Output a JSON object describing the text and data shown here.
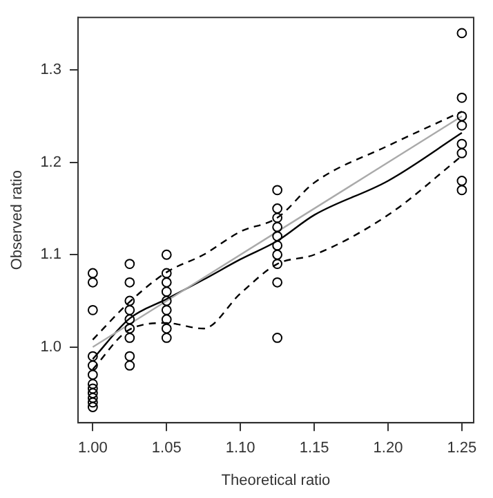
{
  "chart_data": {
    "type": "scatter",
    "xlabel": "Theoretical ratio",
    "ylabel": "Observed ratio",
    "xlim": [
      0.99,
      1.258
    ],
    "ylim": [
      0.918,
      1.357
    ],
    "xticks": [
      {
        "value": 1.0,
        "label": "1.00"
      },
      {
        "value": 1.05,
        "label": "1.05"
      },
      {
        "value": 1.1,
        "label": "1.10"
      },
      {
        "value": 1.15,
        "label": "1.15"
      },
      {
        "value": 1.2,
        "label": "1.20"
      },
      {
        "value": 1.25,
        "label": "1.25"
      }
    ],
    "yticks": [
      {
        "value": 1.0,
        "label": "1.0"
      },
      {
        "value": 1.1,
        "label": "1.1"
      },
      {
        "value": 1.2,
        "label": "1.2"
      },
      {
        "value": 1.3,
        "label": "1.3"
      }
    ],
    "grid": false,
    "legend": false,
    "series": [
      {
        "type": "scatter",
        "marker": "circle",
        "color": "#000000",
        "x": [
          1.0,
          1.0,
          1.0,
          1.0,
          1.0,
          1.0,
          1.0,
          1.0,
          1.0,
          1.0,
          1.0,
          1.0,
          1.025,
          1.025,
          1.025,
          1.025,
          1.025,
          1.025,
          1.025,
          1.025,
          1.025,
          1.05,
          1.05,
          1.05,
          1.05,
          1.05,
          1.05,
          1.05,
          1.05,
          1.05,
          1.125,
          1.125,
          1.125,
          1.125,
          1.125,
          1.125,
          1.125,
          1.125,
          1.125,
          1.125,
          1.25,
          1.25,
          1.25,
          1.25,
          1.25,
          1.25,
          1.25,
          1.25
        ],
        "values": [
          1.08,
          1.07,
          1.04,
          0.99,
          0.98,
          0.97,
          0.96,
          0.955,
          0.95,
          0.945,
          0.94,
          0.935,
          1.09,
          1.07,
          1.05,
          1.04,
          1.03,
          1.02,
          1.01,
          0.99,
          0.98,
          1.1,
          1.08,
          1.07,
          1.06,
          1.05,
          1.04,
          1.03,
          1.02,
          1.01,
          1.17,
          1.15,
          1.14,
          1.13,
          1.12,
          1.11,
          1.1,
          1.09,
          1.07,
          1.01,
          1.34,
          1.27,
          1.25,
          1.24,
          1.22,
          1.21,
          1.18,
          1.17
        ]
      },
      {
        "type": "line",
        "marker": "none",
        "line_style": "solid",
        "color": "#aaaaaa",
        "x": [
          1.0,
          1.25
        ],
        "values": [
          1.0,
          1.25
        ]
      },
      {
        "type": "line",
        "marker": "none",
        "line_style": "dashed",
        "color": "#000000",
        "x": [
          1.0,
          1.025,
          1.05,
          1.075,
          1.1,
          1.125,
          1.15,
          1.2,
          1.25
        ],
        "values": [
          1.008,
          1.049,
          1.081,
          1.1,
          1.125,
          1.14,
          1.178,
          1.218,
          1.255
        ]
      },
      {
        "type": "line",
        "marker": "none",
        "line_style": "dashed",
        "color": "#000000",
        "x": [
          1.0,
          1.025,
          1.05,
          1.075,
          1.1,
          1.125,
          1.15,
          1.2,
          1.25
        ],
        "values": [
          0.976,
          1.019,
          1.026,
          1.02,
          1.058,
          1.09,
          1.1,
          1.143,
          1.207
        ]
      },
      {
        "type": "line",
        "marker": "none",
        "line_style": "solid",
        "color": "#000000",
        "x": [
          1.0,
          1.025,
          1.05,
          1.075,
          1.1,
          1.125,
          1.15,
          1.2,
          1.25
        ],
        "values": [
          0.987,
          1.031,
          1.052,
          1.073,
          1.095,
          1.115,
          1.143,
          1.18,
          1.232
        ]
      }
    ]
  }
}
